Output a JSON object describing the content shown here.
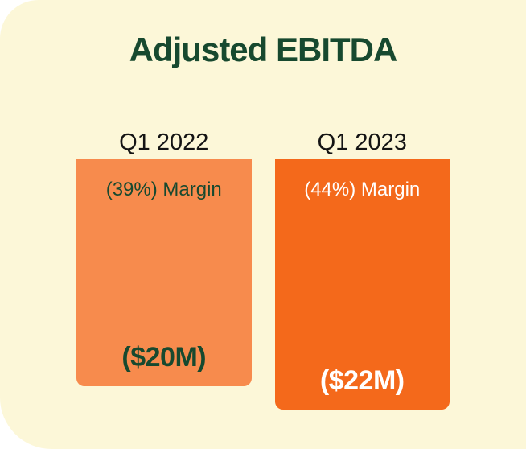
{
  "title": "Adjusted EBITDA",
  "colors": {
    "page_background": "#FFFFFF",
    "card_background": "#FCF7D8",
    "title": "#17492F",
    "category_label": "#141414"
  },
  "chart_data": {
    "type": "bar",
    "title": "Adjusted EBITDA",
    "orientation": "vertical-hanging-top-aligned",
    "legend": "none",
    "grid": false,
    "axes_shown": false,
    "categories": [
      "Q1 2022",
      "Q1 2023"
    ],
    "values": [
      20,
      22
    ],
    "bars": [
      {
        "category": "Q1 2022",
        "value_m": 20,
        "value_label": "($20M)",
        "margin_pct": 39,
        "margin_label": "(39%) Margin",
        "color": "#F78B4D",
        "text_color": "#17492F"
      },
      {
        "category": "Q1 2023",
        "value_m": 22,
        "value_label": "($22M)",
        "margin_pct": 44,
        "margin_label": "(44%) Margin",
        "color": "#F4691B",
        "text_color": "#FFFFFF"
      }
    ]
  }
}
